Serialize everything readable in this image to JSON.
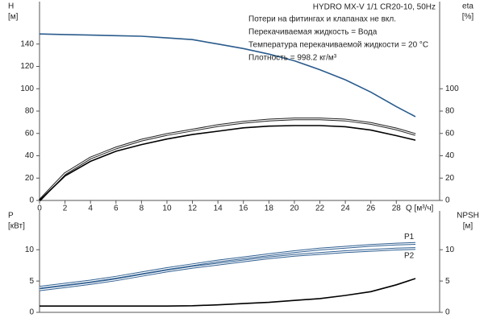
{
  "chart_data": [
    {
      "type": "line",
      "title": "HYDRO MX-V 1/1 CR20-10, 50Hz",
      "annotations": [
        "Потери на фитингах и клапанах не вкл.",
        "Перекачиваемая жидкость = Вода",
        "Температура перекачиваемой жидкости = 20 °C",
        "Плотность = 998.2 кг/м³"
      ],
      "xlabel": "Q [м³/ч]",
      "ylabel": "H",
      "ylabel_unit": "[м]",
      "y2label": "eta",
      "y2label_unit": "[%]",
      "x": [
        0,
        2,
        4,
        6,
        8,
        10,
        12,
        14,
        16,
        18,
        20,
        22,
        24,
        26,
        28,
        29.5
      ],
      "xlim": [
        0,
        31.4
      ],
      "xticks": [
        0,
        2,
        4,
        6,
        8,
        10,
        12,
        14,
        16,
        18,
        20,
        22,
        24,
        26,
        28
      ],
      "ylim": [
        0,
        178
      ],
      "yticks": [
        0,
        20,
        40,
        60,
        80,
        100,
        120,
        140
      ],
      "y2lim": [
        0,
        178
      ],
      "y2ticks": [
        0,
        20,
        40,
        60,
        80,
        100
      ],
      "series": [
        {
          "color": "#2a5b8c",
          "style": "solid",
          "axis": "y",
          "values": [
            149,
            148.5,
            148,
            147.5,
            147,
            145.5,
            144,
            140,
            136,
            131,
            125,
            117,
            108,
            97,
            84,
            75
          ]
        },
        {
          "color": "#222222",
          "style": "double",
          "axis": "y2",
          "values": [
            0,
            24,
            38,
            47,
            54,
            59,
            63,
            67,
            70,
            72,
            73,
            73,
            72,
            69,
            64,
            59
          ]
        },
        {
          "color": "#000000",
          "style": "solid",
          "axis": "y2",
          "values": [
            0,
            22,
            35,
            44,
            50,
            55,
            59,
            62,
            65,
            66.5,
            67,
            67,
            66,
            63,
            58,
            54
          ]
        }
      ]
    },
    {
      "type": "line",
      "ylabel": "P",
      "ylabel_unit": "[кВт]",
      "y2label": "NPSH",
      "y2label_unit": "[м]",
      "x": [
        0,
        2,
        4,
        6,
        8,
        10,
        12,
        14,
        16,
        18,
        20,
        22,
        24,
        26,
        28,
        29.5
      ],
      "xlim": [
        0,
        31.4
      ],
      "ylim": [
        0,
        16.2
      ],
      "yticks": [
        0,
        5,
        10
      ],
      "y2lim": [
        0,
        16.2
      ],
      "y2ticks": [
        0,
        5,
        10
      ],
      "series": [
        {
          "name": "P1",
          "color": "#2f5f91",
          "style": "double",
          "axis": "y",
          "values": [
            4.0,
            4.5,
            5.0,
            5.6,
            6.3,
            7.0,
            7.6,
            8.2,
            8.7,
            9.2,
            9.7,
            10.1,
            10.4,
            10.7,
            10.9,
            11.0
          ]
        },
        {
          "name": "P2",
          "color": "#2f5f91",
          "style": "double",
          "axis": "y",
          "values": [
            3.6,
            4.1,
            4.6,
            5.2,
            5.9,
            6.6,
            7.2,
            7.7,
            8.2,
            8.7,
            9.1,
            9.4,
            9.7,
            9.9,
            10.1,
            10.2
          ]
        },
        {
          "color": "#000000",
          "style": "solid",
          "axis": "y2",
          "values": [
            1.0,
            1.0,
            1.0,
            1.0,
            1.0,
            1.0,
            1.05,
            1.2,
            1.4,
            1.6,
            1.9,
            2.2,
            2.7,
            3.3,
            4.4,
            5.4
          ]
        }
      ]
    }
  ]
}
